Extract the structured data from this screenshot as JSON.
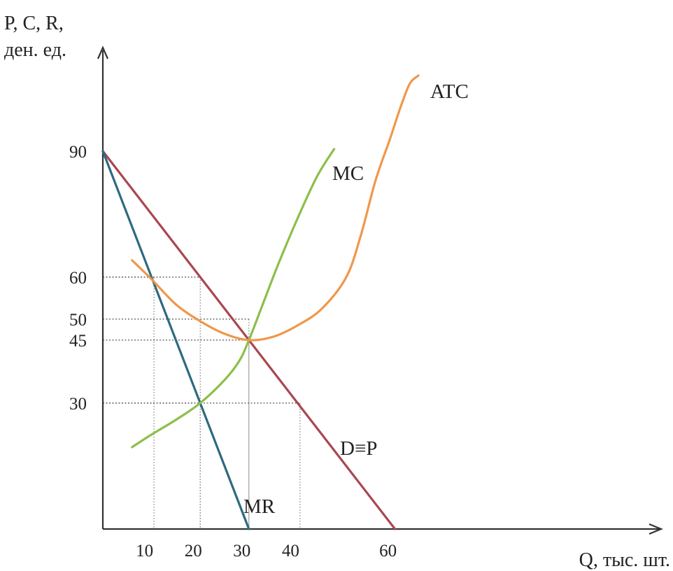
{
  "chart_data": {
    "type": "line",
    "title": "",
    "ylabel_line1": "P, C, R,",
    "ylabel_line2": "ден. ед.",
    "xlabel": "Q, тыс. шт.",
    "x_ticks": [
      {
        "label": "10",
        "value": 10
      },
      {
        "label": "20",
        "value": 20
      },
      {
        "label": "30",
        "value": 30
      },
      {
        "label": "40",
        "value": 40
      },
      {
        "label": "60",
        "value": 60
      }
    ],
    "y_ticks": [
      {
        "label": "90",
        "value": 90
      },
      {
        "label": "60",
        "value": 60
      },
      {
        "label": "50",
        "value": 50
      },
      {
        "label": "45",
        "value": 45
      },
      {
        "label": "30",
        "value": 30
      }
    ],
    "xlim": [
      0,
      113
    ],
    "ylim": [
      0,
      112
    ],
    "guide_lines": [
      {
        "x": 10.5,
        "y": 60
      },
      {
        "x": 20,
        "y": 60
      },
      {
        "x": 30,
        "y": 50
      },
      {
        "x": 30,
        "y": 45
      },
      {
        "x": 20,
        "y": 30
      },
      {
        "x": 40.5,
        "y": 30
      }
    ],
    "series": [
      {
        "name": "D≡P",
        "color": "#a94750",
        "x": [
          0,
          60
        ],
        "y": [
          90,
          0
        ]
      },
      {
        "name": "MR",
        "color": "#2e6a80",
        "x": [
          0,
          30
        ],
        "y": [
          90,
          0
        ]
      },
      {
        "name": "MC",
        "color": "#8cbf4a",
        "x": [
          6,
          10,
          15,
          20,
          25,
          28,
          30,
          33,
          36,
          40,
          44,
          47.5
        ],
        "y": [
          19.5,
          22.5,
          26,
          30,
          35.5,
          40,
          45,
          54,
          63,
          74,
          84,
          90.5
        ]
      },
      {
        "name": "ATC",
        "color": "#f0974a",
        "x": [
          6,
          10,
          15,
          20,
          25,
          30,
          35,
          40,
          45,
          50,
          53,
          56,
          59,
          61,
          63,
          64.8
        ],
        "y": [
          64,
          59.5,
          53.5,
          49.5,
          46.5,
          45,
          45.8,
          48.5,
          52.5,
          60,
          70,
          83,
          93,
          100,
          106,
          108
        ]
      }
    ]
  }
}
